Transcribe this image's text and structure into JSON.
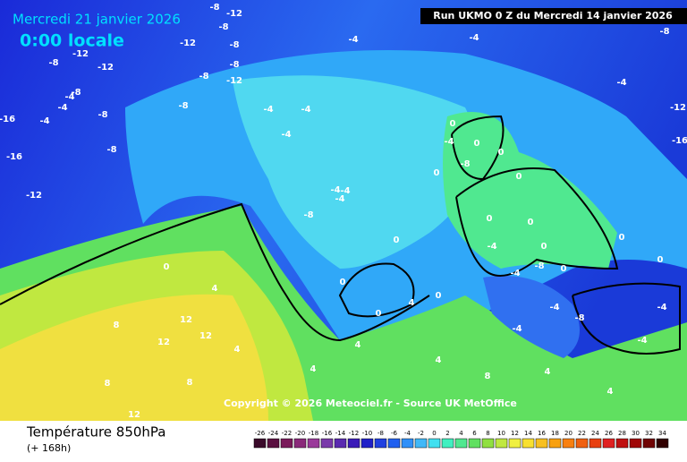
{
  "header": {
    "date": "Mercredi 21 janvier 2026",
    "time": "0:00 locale",
    "run": "Run UKMO 0 Z du Mercredi 14 janvier 2026"
  },
  "copyright": "Copyright © 2026 Meteociel.fr - Source UK MetOffice",
  "footer": {
    "title": "Température 850hPa",
    "lead": "(+ 168h)"
  },
  "map_labels": [
    -8,
    -12,
    -8,
    -12,
    -8,
    -12,
    -8,
    -4,
    -8,
    -4,
    -4,
    -8,
    -8,
    -8,
    -16,
    -16,
    -12,
    -12,
    -8,
    -8,
    -4,
    -4,
    -4,
    -4,
    -4,
    -4,
    -8,
    -12,
    -8,
    -4,
    0,
    0,
    0,
    -4,
    0,
    0,
    -4,
    -4,
    0,
    -8,
    0,
    0,
    0,
    0,
    -4,
    0,
    4,
    8,
    12,
    12,
    12,
    4,
    8,
    8,
    12,
    0,
    0,
    4,
    0,
    -4,
    -4,
    -8,
    -8,
    -4,
    -4,
    0,
    4,
    4,
    4,
    8,
    4,
    4,
    0,
    -4,
    -12,
    -16
  ],
  "legend": {
    "labels": [
      -26,
      -24,
      -22,
      -20,
      -18,
      -16,
      -14,
      -12,
      -10,
      -8,
      -6,
      -4,
      -2,
      0,
      2,
      4,
      6,
      8,
      10,
      12,
      14,
      16,
      18,
      20,
      22,
      24,
      26,
      28,
      30,
      32,
      34
    ],
    "colors": [
      "#3a0a2a",
      "#5a1040",
      "#7a1a5a",
      "#8a2a7a",
      "#9a3a9a",
      "#7a3aaa",
      "#5a2ab0",
      "#3a1ab8",
      "#2020c8",
      "#2040e0",
      "#2060f0",
      "#3090f8",
      "#40b8f8",
      "#40e0f0",
      "#40f0c0",
      "#50e890",
      "#60e060",
      "#90e040",
      "#c0e840",
      "#f0f040",
      "#f8e030",
      "#f8c020",
      "#f8a010",
      "#f88010",
      "#f06010",
      "#e84010",
      "#e02020",
      "#c01010",
      "#a00808",
      "#700404",
      "#300000"
    ]
  }
}
